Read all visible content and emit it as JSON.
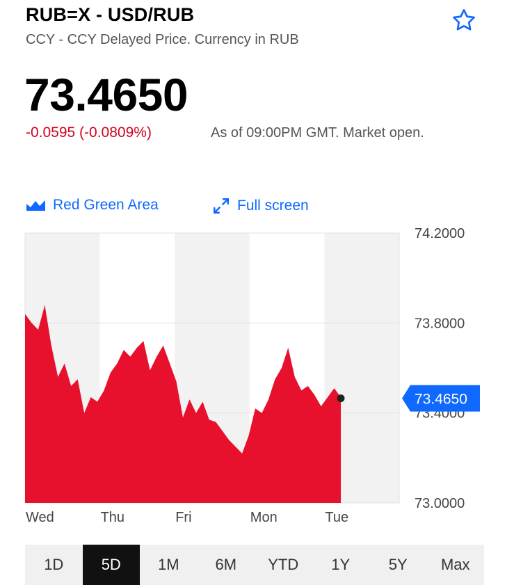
{
  "header": {
    "title": "RUB=X - USD/RUB",
    "subtitle": "CCY - CCY Delayed Price. Currency in RUB",
    "star_icon": "star-outline-icon"
  },
  "quote": {
    "price": "73.4650",
    "change": "-0.0595 (-0.0809%)",
    "as_of": "As of 09:00PM GMT. Market open.",
    "change_color": "#d0021b"
  },
  "toolbar": {
    "chart_type_label": "Red Green Area",
    "chart_type_icon": "area-chart-icon",
    "fullscreen_label": "Full screen",
    "fullscreen_icon": "expand-icon"
  },
  "chart_data": {
    "type": "area",
    "days": [
      "Wed",
      "Thu",
      "Fri",
      "Mon",
      "Tue"
    ],
    "y_ticks": [
      "74.2000",
      "73.8000",
      "73.4000",
      "73.0000"
    ],
    "ylim": [
      73.0,
      74.2
    ],
    "current_value": "73.4650",
    "series": [
      {
        "color": "#e8112d",
        "values": [
          73.84,
          73.8,
          73.77,
          73.88,
          73.7,
          73.56,
          73.62,
          73.52,
          73.55,
          73.4,
          73.47,
          73.45,
          73.5,
          73.58,
          73.62,
          73.68,
          73.65,
          73.69,
          73.72,
          73.59,
          73.65,
          73.7,
          73.62,
          73.54,
          73.38,
          73.46,
          73.4,
          73.45,
          73.37,
          73.36,
          73.32,
          73.28,
          73.25,
          73.22,
          73.3,
          73.42,
          73.4,
          73.46,
          73.55,
          73.6,
          73.69,
          73.56,
          73.5,
          73.52,
          73.48,
          73.43,
          73.47,
          73.51,
          73.47
        ]
      }
    ],
    "colors": {
      "area": "#e8112d",
      "grid_band": "#f2f2f2",
      "label_bg": "#0f69ff"
    }
  },
  "ranges": {
    "items": [
      "1D",
      "5D",
      "1M",
      "6M",
      "YTD",
      "1Y",
      "5Y",
      "Max"
    ],
    "active": "5D"
  }
}
